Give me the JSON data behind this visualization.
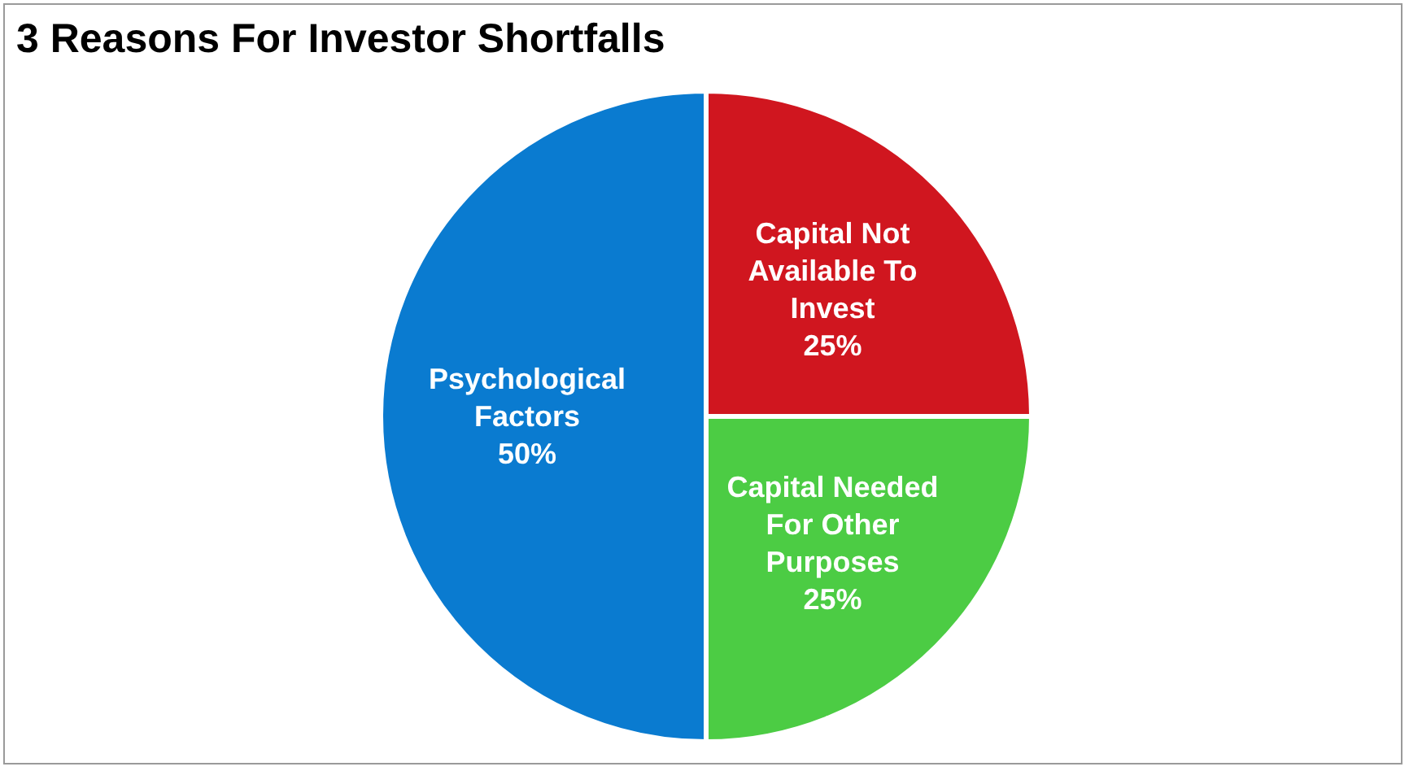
{
  "chart_data": {
    "type": "pie",
    "title": "3 Reasons For Investor Shortfalls",
    "categories": [
      "Capital Not Available To Invest",
      "Capital Needed For Other Purposes",
      "Psychological Factors"
    ],
    "values": [
      25,
      25,
      50
    ],
    "colors": [
      "#d0161f",
      "#4ccc44",
      "#0a7bd0"
    ],
    "value_labels": [
      "25%",
      "25%",
      "50%"
    ],
    "legend": false
  }
}
